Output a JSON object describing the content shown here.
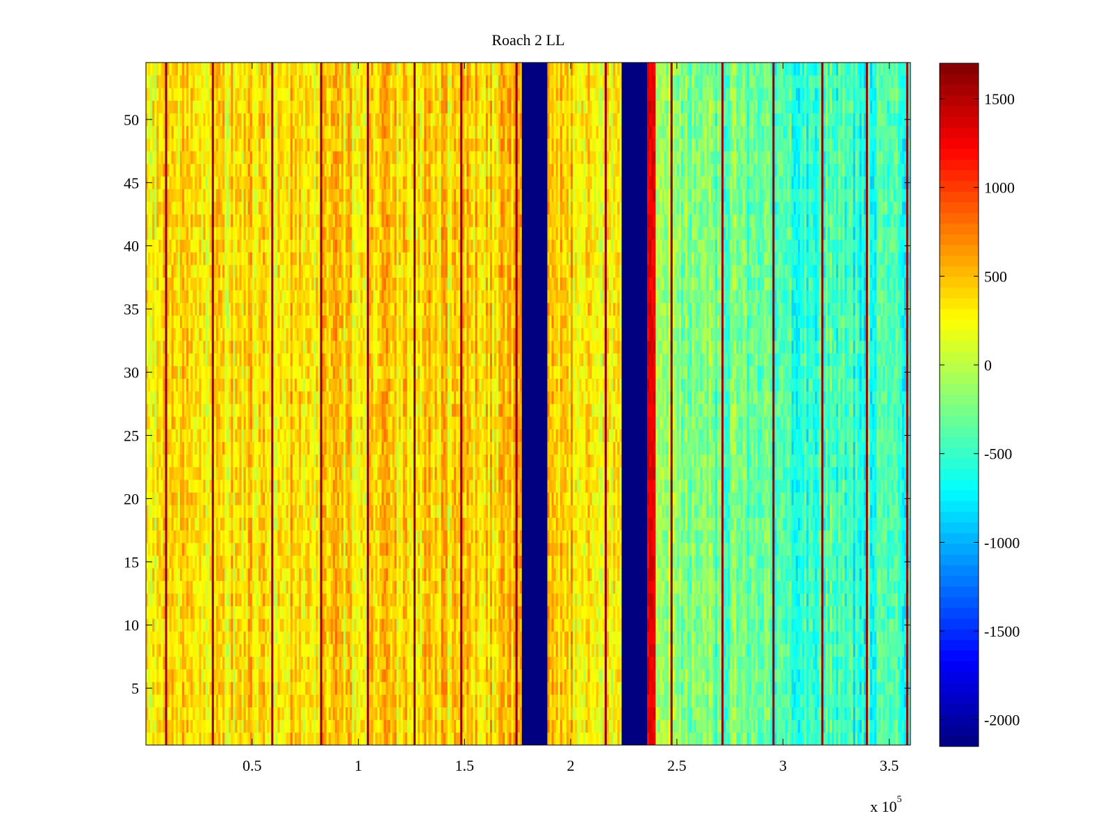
{
  "chart_data": {
    "type": "heatmap",
    "title": "Roach 2 LL",
    "xlabel": "",
    "ylabel": "",
    "x_exponent_label": "x 10",
    "x_exponent_power": "5",
    "xlim": [
      0,
      360000
    ],
    "ylim": [
      0.5,
      54.5
    ],
    "x_ticks": [
      50000,
      100000,
      150000,
      200000,
      250000,
      300000,
      350000
    ],
    "x_tick_labels": [
      "0.5",
      "1",
      "1.5",
      "2",
      "2.5",
      "3",
      "3.5"
    ],
    "y_ticks": [
      5,
      10,
      15,
      20,
      25,
      30,
      35,
      40,
      45,
      50
    ],
    "y_tick_labels": [
      "5",
      "10",
      "15",
      "20",
      "25",
      "30",
      "35",
      "40",
      "45",
      "50"
    ],
    "colormap": "jet",
    "clim": [
      -2150,
      1700
    ],
    "colorbar": {
      "ticks": [
        -2000,
        -1500,
        -1000,
        -500,
        0,
        500,
        1000,
        1500
      ],
      "tick_labels": [
        "-2000",
        "-1500",
        "-1000",
        "-500",
        "0",
        "500",
        "1000",
        "1500"
      ]
    },
    "rows": 54,
    "columns": 360,
    "column_profile": [
      {
        "x": 0,
        "value": 280
      },
      {
        "x": 50000,
        "value": 380
      },
      {
        "x": 100000,
        "value": 380
      },
      {
        "x": 150000,
        "value": 420
      },
      {
        "x": 175000,
        "value": 450
      },
      {
        "x": 190000,
        "value": 480
      },
      {
        "x": 215000,
        "value": 330
      },
      {
        "x": 245000,
        "value": -150
      },
      {
        "x": 270000,
        "value": -300
      },
      {
        "x": 300000,
        "value": -450
      },
      {
        "x": 330000,
        "value": -500
      },
      {
        "x": 360000,
        "value": -530
      }
    ],
    "masked_bands": [
      {
        "x_start": 177000,
        "x_end": 189000,
        "value": -2150
      },
      {
        "x_start": 224000,
        "x_end": 236000,
        "value": -2150
      }
    ],
    "hot_bands": [
      {
        "x_start": 236000,
        "x_end": 240000,
        "value": 1300
      }
    ],
    "spike_columns": [
      9000,
      31000,
      59000,
      82000,
      104000,
      126000,
      148000,
      174000,
      216000,
      247000,
      271000,
      295000,
      318000,
      339000,
      358000
    ],
    "spike_value": 1600
  }
}
